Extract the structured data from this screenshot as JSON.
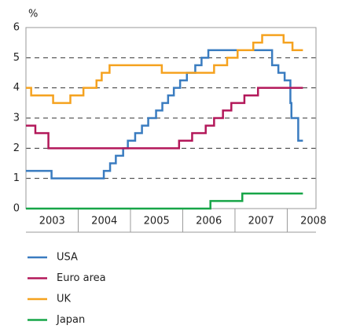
{
  "chart_data": {
    "type": "line",
    "step": "post",
    "ylabel": "%",
    "xlim": [
      2003,
      2008.55
    ],
    "ylim": [
      0,
      6
    ],
    "yticks": [
      0,
      1,
      2,
      3,
      4,
      5,
      6
    ],
    "xticks": [
      {
        "value": 2003.5,
        "label": "2003"
      },
      {
        "value": 2004.5,
        "label": "2004"
      },
      {
        "value": 2005.5,
        "label": "2005"
      },
      {
        "value": 2006.5,
        "label": "2006"
      },
      {
        "value": 2007.5,
        "label": "2007"
      },
      {
        "value": 2008.5,
        "label": "2008"
      }
    ],
    "grid": true,
    "legend": "bottom",
    "series": [
      {
        "name": "USA",
        "color": "#3a7cc0",
        "x": [
          2003,
          2003.49,
          2004.49,
          2004.61,
          2004.72,
          2004.86,
          2004.95,
          2005.09,
          2005.22,
          2005.34,
          2005.49,
          2005.61,
          2005.72,
          2005.83,
          2005.95,
          2006.08,
          2006.24,
          2006.36,
          2006.49,
          2007.71,
          2007.83,
          2007.95,
          2008.06,
          2008.08,
          2008.21,
          2008.3
        ],
        "values": [
          1.25,
          1.0,
          1.25,
          1.5,
          1.75,
          2.0,
          2.25,
          2.5,
          2.75,
          3.0,
          3.25,
          3.5,
          3.75,
          4.0,
          4.25,
          4.5,
          4.75,
          5.0,
          5.25,
          4.75,
          4.5,
          4.25,
          3.5,
          3.0,
          2.25,
          2.25
        ]
      },
      {
        "name": "Euro area",
        "color": "#b3185a",
        "x": [
          2003,
          2003.18,
          2003.43,
          2005.93,
          2006.18,
          2006.44,
          2006.6,
          2006.77,
          2006.93,
          2007.18,
          2007.44,
          2008.3
        ],
        "values": [
          2.75,
          2.5,
          2.0,
          2.25,
          2.5,
          2.75,
          3.0,
          3.25,
          3.5,
          3.75,
          4.0,
          4.0
        ]
      },
      {
        "name": "UK",
        "color": "#f5a21f",
        "x": [
          2003,
          2003.1,
          2003.52,
          2003.85,
          2004.1,
          2004.35,
          2004.45,
          2004.6,
          2005.6,
          2006.6,
          2006.85,
          2007.05,
          2007.35,
          2007.52,
          2007.93,
          2008.1,
          2008.3
        ],
        "values": [
          4.0,
          3.75,
          3.5,
          3.75,
          4.0,
          4.25,
          4.5,
          4.75,
          4.5,
          4.75,
          5.0,
          5.25,
          5.5,
          5.75,
          5.5,
          5.25,
          5.25
        ]
      },
      {
        "name": "Japan",
        "color": "#17a548",
        "x": [
          2003,
          2006.53,
          2007.14,
          2008.3
        ],
        "values": [
          0,
          0.25,
          0.5,
          0.5
        ]
      }
    ]
  }
}
